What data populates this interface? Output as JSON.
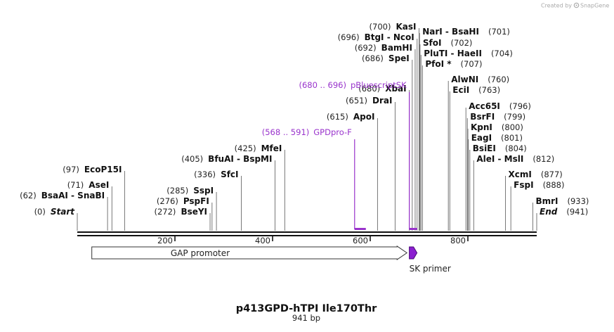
{
  "watermark": {
    "prefix": "Created by",
    "brand": "SnapGene"
  },
  "title": "p413GPD-hTPI Ile170Thr",
  "length_label": "941 bp",
  "total_bp": 941,
  "colors": {
    "primer": "#9933cc",
    "line": "#111111",
    "feature_fill": "#ffffff",
    "sk_fill": "#8b1fd0"
  },
  "axis_ticks": [
    {
      "pos": 200,
      "label": "200"
    },
    {
      "pos": 400,
      "label": "400"
    },
    {
      "pos": 600,
      "label": "600"
    },
    {
      "pos": 800,
      "label": "800"
    }
  ],
  "features": [
    {
      "name": "GAP promoter",
      "start": 1,
      "end": 678,
      "direction": "forward",
      "icon": "arrow-feature"
    },
    {
      "name": "SK primer",
      "start": 680,
      "end": 696,
      "direction": "forward",
      "icon": "primer-arrow"
    }
  ],
  "primers": [
    {
      "range": "(568 .. 591)",
      "name": "GPDpro-F",
      "start": 568,
      "end": 591
    },
    {
      "range": "(680 .. 696)",
      "name": "pBluescriptSK",
      "start": 680,
      "end": 696
    }
  ],
  "sites": [
    {
      "num": "(0)",
      "name": "Start",
      "italic": true,
      "pos": 0
    },
    {
      "num": "(62)",
      "name": "BsaAI  - SnaBI",
      "pos": 62
    },
    {
      "num": "(71)",
      "name": "AseI",
      "pos": 71
    },
    {
      "num": "(97)",
      "name": "EcoP15I",
      "pos": 97
    },
    {
      "num": "(272)",
      "name": "BseYI",
      "pos": 272
    },
    {
      "num": "(276)",
      "name": "PspFI",
      "pos": 276
    },
    {
      "num": "(285)",
      "name": "SspI",
      "pos": 285
    },
    {
      "num": "(336)",
      "name": "SfcI",
      "pos": 336
    },
    {
      "num": "(405)",
      "name": "BfuAI  - BspMI",
      "pos": 405
    },
    {
      "num": "(425)",
      "name": "MfeI",
      "pos": 425
    },
    {
      "num": "(615)",
      "name": "ApoI",
      "pos": 615
    },
    {
      "num": "(651)",
      "name": "DraI",
      "pos": 651
    },
    {
      "num": "(680)",
      "name": "XbaI",
      "pos": 680
    },
    {
      "num": "(686)",
      "name": "SpeI",
      "pos": 686
    },
    {
      "num": "(692)",
      "name": "BamHI",
      "pos": 692
    },
    {
      "num": "(696)",
      "name": "BtgI  - NcoI",
      "pos": 696
    },
    {
      "num": "(700)",
      "name": "KasI",
      "pos": 700
    },
    {
      "num": "(701)",
      "name": "NarI  - BsaHI",
      "pos": 701,
      "right": true
    },
    {
      "num": "(702)",
      "name": "SfoI",
      "pos": 702,
      "right": true
    },
    {
      "num": "(704)",
      "name": "PluTI  - HaeII",
      "pos": 704,
      "right": true
    },
    {
      "num": "(707)",
      "name": "PfoI *",
      "pos": 707,
      "right": true
    },
    {
      "num": "(760)",
      "name": "AlwNI",
      "pos": 760,
      "right": true
    },
    {
      "num": "(763)",
      "name": "EciI",
      "pos": 763,
      "right": true
    },
    {
      "num": "(796)",
      "name": "Acc65I",
      "pos": 796,
      "right": true
    },
    {
      "num": "(799)",
      "name": "BsrFI",
      "pos": 799,
      "right": true
    },
    {
      "num": "(800)",
      "name": "KpnI",
      "pos": 800,
      "right": true
    },
    {
      "num": "(801)",
      "name": "EagI",
      "pos": 801,
      "right": true
    },
    {
      "num": "(804)",
      "name": "BsiEI",
      "pos": 804,
      "right": true
    },
    {
      "num": "(812)",
      "name": "AleI  - MslI",
      "pos": 812,
      "right": true
    },
    {
      "num": "(877)",
      "name": "XcmI",
      "pos": 877,
      "right": true
    },
    {
      "num": "(888)",
      "name": "FspI",
      "pos": 888,
      "right": true
    },
    {
      "num": "(933)",
      "name": "BmrI",
      "pos": 933,
      "right": true
    },
    {
      "num": "(941)",
      "name": "End",
      "italic": true,
      "pos": 941,
      "right": true
    }
  ]
}
